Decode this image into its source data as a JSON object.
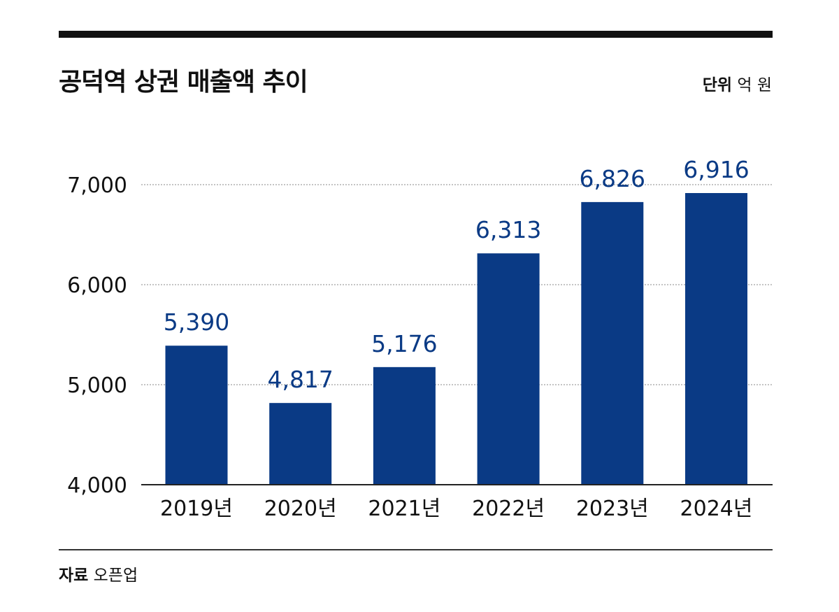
{
  "header": {
    "title": "공덕역 상권 매출액 추이",
    "unit_label": "단위",
    "unit_value": "억 원"
  },
  "footer": {
    "source_label": "자료",
    "source_value": "오픈업"
  },
  "colors": {
    "bar": "#0a3a85",
    "value_label": "#0a3a85",
    "text": "#111111",
    "grid": "#888888"
  },
  "chart_data": {
    "type": "bar",
    "categories": [
      "2019년",
      "2020년",
      "2021년",
      "2022년",
      "2023년",
      "2024년"
    ],
    "values": [
      5390,
      4817,
      5176,
      6313,
      6826,
      6916
    ],
    "value_labels": [
      "5,390",
      "4,817",
      "5,176",
      "6,313",
      "6,826",
      "6,916"
    ],
    "title": "공덕역 상권 매출액 추이",
    "xlabel": "",
    "ylabel": "",
    "ylim": [
      4000,
      7000
    ],
    "yticks": [
      4000,
      5000,
      6000,
      7000
    ],
    "ytick_labels": [
      "4,000",
      "5,000",
      "6,000",
      "7,000"
    ],
    "grid": true,
    "grid_style": "dotted",
    "legend": "none"
  }
}
